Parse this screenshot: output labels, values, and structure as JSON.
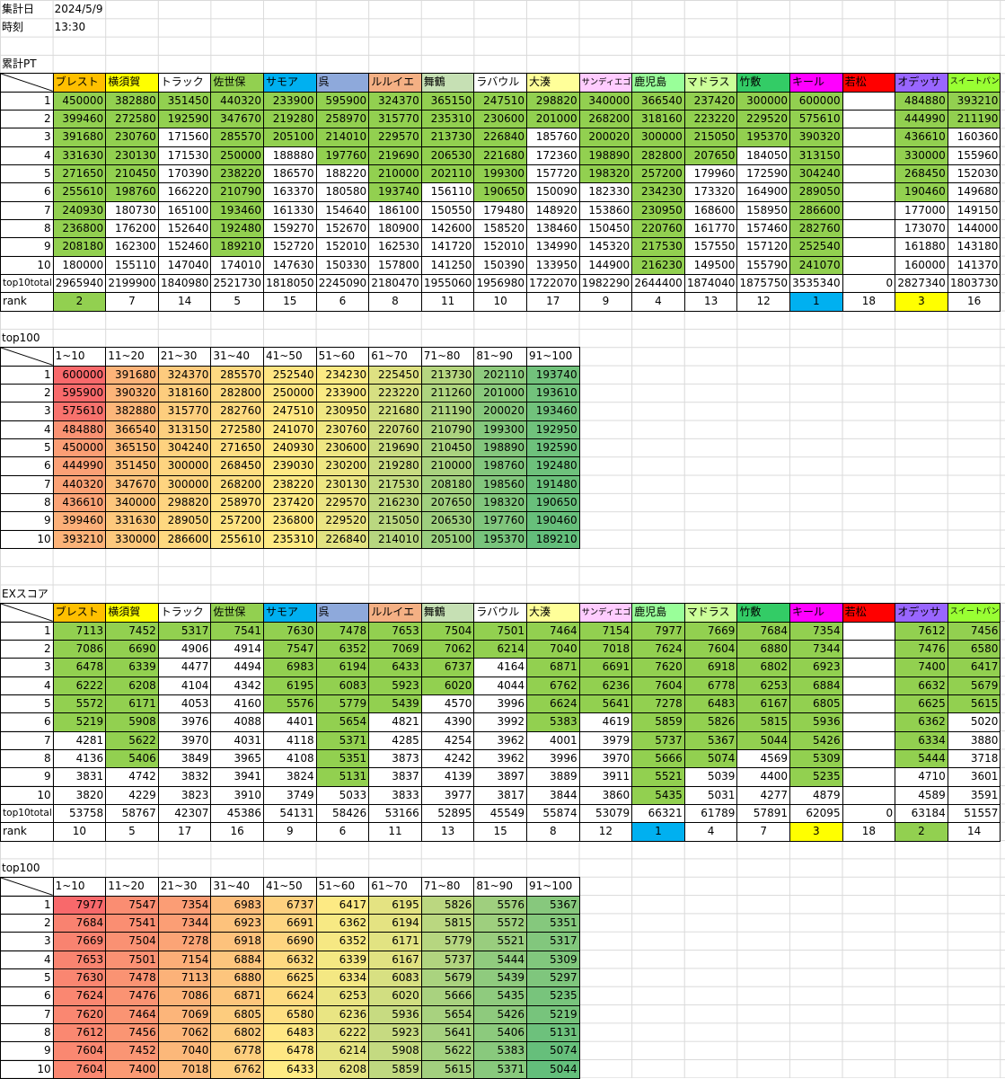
{
  "header": {
    "date_label": "集計日",
    "date": "2024/5/9",
    "time_label": "時刻",
    "time": "13:30"
  },
  "highlight_color": "#92d050",
  "rank_colors": [
    "#00b0f0",
    "#92d050",
    "#ffff00"
  ],
  "color_scale": [
    "#f8696b",
    "#ffeb84",
    "#63be7b"
  ],
  "teams": [
    {
      "name": "ブレスト",
      "color": "#ffc000"
    },
    {
      "name": "横須賀",
      "color": "#ffff00"
    },
    {
      "name": "トラック",
      "color": "#ffffff"
    },
    {
      "name": "佐世保",
      "color": "#92d050"
    },
    {
      "name": "サモア",
      "color": "#00b0f0"
    },
    {
      "name": "呉",
      "color": "#8ea9db"
    },
    {
      "name": "ルルイエ",
      "color": "#f4b084"
    },
    {
      "name": "舞鶴",
      "color": "#c6e0b4"
    },
    {
      "name": "ラバウル",
      "color": "#ffffff"
    },
    {
      "name": "大湊",
      "color": "#ffff99"
    },
    {
      "name": "サンディエゴ",
      "color": "#ffccff"
    },
    {
      "name": "鹿児島",
      "color": "#99ff99"
    },
    {
      "name": "マドラス",
      "color": "#ccff99"
    },
    {
      "name": "竹敷",
      "color": "#33cc66"
    },
    {
      "name": "キール",
      "color": "#ff00ff"
    },
    {
      "name": "若松",
      "color": "#ff0000"
    },
    {
      "name": "オデッサ",
      "color": "#9966ff"
    },
    {
      "name": "スイートパン",
      "color": "#99ff33"
    }
  ],
  "row_numbers": [
    1,
    2,
    3,
    4,
    5,
    6,
    7,
    8,
    9,
    10
  ],
  "total_label": "top10total",
  "rank_label": "rank",
  "top100_title": "top100",
  "top100_columns": [
    "1~10",
    "11~20",
    "21~30",
    "31~40",
    "41~50",
    "51~60",
    "61~70",
    "71~80",
    "81~90",
    "91~100"
  ],
  "sections": [
    {
      "title": "累計PT",
      "rows": [
        [
          450000,
          382880,
          351450,
          440320,
          233900,
          595900,
          324370,
          365150,
          247510,
          298820,
          340000,
          366540,
          237420,
          300000,
          600000,
          null,
          484880,
          393210
        ],
        [
          399460,
          272580,
          192590,
          347670,
          219280,
          258970,
          315770,
          235310,
          230600,
          201000,
          268200,
          318160,
          223220,
          229520,
          575610,
          null,
          444990,
          211190
        ],
        [
          391680,
          230760,
          171560,
          285570,
          205100,
          214010,
          229570,
          213730,
          226840,
          185760,
          200020,
          300000,
          215050,
          195370,
          390320,
          null,
          436610,
          160360
        ],
        [
          331630,
          230130,
          171530,
          250000,
          188880,
          197760,
          219690,
          206530,
          221680,
          172360,
          198890,
          282800,
          207650,
          184050,
          313150,
          null,
          330000,
          155960
        ],
        [
          271650,
          210450,
          170390,
          238220,
          186570,
          188220,
          210000,
          202110,
          199300,
          157720,
          198320,
          257200,
          179960,
          172590,
          304240,
          null,
          268450,
          152030
        ],
        [
          255610,
          198760,
          166220,
          210790,
          163370,
          180580,
          193740,
          156110,
          190650,
          150090,
          182330,
          234230,
          173320,
          164900,
          289050,
          null,
          190460,
          149680
        ],
        [
          240930,
          180730,
          165100,
          193460,
          161330,
          154640,
          186100,
          150550,
          179480,
          148920,
          153860,
          230950,
          168600,
          158950,
          286600,
          null,
          177000,
          149150
        ],
        [
          236800,
          176200,
          152640,
          192480,
          159270,
          152670,
          180900,
          142600,
          158520,
          138460,
          150450,
          220760,
          161770,
          157460,
          282760,
          null,
          173070,
          144000
        ],
        [
          208180,
          162300,
          152460,
          189210,
          152720,
          152010,
          162530,
          141720,
          152010,
          134990,
          145320,
          217530,
          157550,
          157120,
          252540,
          null,
          161880,
          143180
        ],
        [
          180000,
          155110,
          147040,
          174010,
          147630,
          150330,
          157800,
          141250,
          150390,
          133950,
          144900,
          216230,
          149500,
          155790,
          241070,
          null,
          160000,
          141370
        ]
      ],
      "total": [
        2965940,
        2199900,
        1840980,
        2521730,
        1818050,
        2245090,
        2180470,
        1955060,
        1956980,
        1722070,
        1982290,
        2644400,
        1874040,
        1875750,
        3535340,
        0,
        2827340,
        1803730
      ],
      "rank": [
        2,
        7,
        14,
        5,
        15,
        6,
        8,
        11,
        10,
        17,
        9,
        4,
        13,
        12,
        1,
        18,
        3,
        16
      ],
      "top100": [
        [
          600000,
          391680,
          324370,
          285570,
          252540,
          234230,
          225450,
          213730,
          202110,
          193740
        ],
        [
          595900,
          390320,
          318160,
          282800,
          250000,
          233900,
          223220,
          211260,
          201000,
          193610
        ],
        [
          575610,
          382880,
          315770,
          282760,
          247510,
          230950,
          221680,
          211190,
          200020,
          193460
        ],
        [
          484880,
          366540,
          313150,
          272580,
          241070,
          230760,
          220760,
          210790,
          199300,
          192950
        ],
        [
          450000,
          365150,
          304240,
          271650,
          240930,
          230600,
          219690,
          210450,
          198890,
          192590
        ],
        [
          444990,
          351450,
          300000,
          268450,
          239030,
          230200,
          219280,
          210000,
          198760,
          192480
        ],
        [
          440320,
          347670,
          300000,
          268200,
          238220,
          230130,
          217530,
          208180,
          198560,
          191480
        ],
        [
          436610,
          340000,
          298820,
          258970,
          237420,
          229570,
          216230,
          207650,
          198320,
          190650
        ],
        [
          399460,
          331630,
          289050,
          257200,
          236800,
          229520,
          215050,
          206530,
          197760,
          190460
        ],
        [
          393210,
          330000,
          286600,
          255610,
          235310,
          226840,
          214010,
          205100,
          195370,
          189210
        ]
      ]
    },
    {
      "title": "EXスコア",
      "rows": [
        [
          7113,
          7452,
          5317,
          7541,
          7630,
          7478,
          7653,
          7504,
          7501,
          7464,
          7154,
          7977,
          7669,
          7684,
          7354,
          null,
          7612,
          7456
        ],
        [
          7086,
          6690,
          4906,
          4914,
          7547,
          6352,
          7069,
          7062,
          6214,
          7040,
          7018,
          7624,
          7604,
          6880,
          7344,
          null,
          7476,
          6580
        ],
        [
          6478,
          6339,
          4477,
          4494,
          6983,
          6194,
          6433,
          6737,
          4164,
          6871,
          6691,
          7620,
          6918,
          6802,
          6923,
          null,
          7400,
          6417
        ],
        [
          6222,
          6208,
          4104,
          4342,
          6195,
          6083,
          5923,
          6020,
          4044,
          6762,
          6236,
          7604,
          6778,
          6253,
          6884,
          null,
          6632,
          5679
        ],
        [
          5572,
          6171,
          4053,
          4160,
          5576,
          5779,
          5439,
          4570,
          3996,
          6624,
          5641,
          7278,
          6483,
          6167,
          6805,
          null,
          6625,
          5615
        ],
        [
          5219,
          5908,
          3976,
          4088,
          4401,
          5654,
          4821,
          4390,
          3992,
          5383,
          4619,
          5859,
          5826,
          5815,
          5936,
          null,
          6362,
          5020
        ],
        [
          4281,
          5622,
          3970,
          4031,
          4118,
          5371,
          4285,
          4254,
          3962,
          4001,
          3979,
          5737,
          5367,
          5044,
          5426,
          null,
          6334,
          3880
        ],
        [
          4136,
          5406,
          3849,
          3965,
          4108,
          5351,
          3873,
          4242,
          3962,
          3996,
          3970,
          5666,
          5074,
          4569,
          5309,
          null,
          5444,
          3718
        ],
        [
          3831,
          4742,
          3832,
          3941,
          3824,
          5131,
          3837,
          4139,
          3897,
          3889,
          3911,
          5521,
          5039,
          4400,
          5235,
          null,
          4710,
          3601
        ],
        [
          3820,
          4229,
          3823,
          3910,
          3749,
          5033,
          3833,
          3977,
          3817,
          3844,
          3860,
          5435,
          5031,
          4277,
          4879,
          null,
          4589,
          3591
        ]
      ],
      "total": [
        53758,
        58767,
        42307,
        45386,
        54131,
        58426,
        53166,
        52895,
        45549,
        55874,
        53079,
        66321,
        61789,
        57891,
        62095,
        0,
        63184,
        51557
      ],
      "rank": [
        10,
        5,
        17,
        16,
        9,
        6,
        11,
        13,
        15,
        8,
        12,
        1,
        4,
        7,
        3,
        18,
        2,
        14
      ],
      "top100": [
        [
          7977,
          7547,
          7354,
          6983,
          6737,
          6417,
          6195,
          5826,
          5576,
          5367
        ],
        [
          7684,
          7541,
          7344,
          6923,
          6691,
          6362,
          6194,
          5815,
          5572,
          5351
        ],
        [
          7669,
          7504,
          7278,
          6918,
          6690,
          6352,
          6171,
          5779,
          5521,
          5317
        ],
        [
          7653,
          7501,
          7154,
          6884,
          6632,
          6339,
          6167,
          5737,
          5444,
          5309
        ],
        [
          7630,
          7478,
          7113,
          6880,
          6625,
          6334,
          6083,
          5679,
          5439,
          5297
        ],
        [
          7624,
          7476,
          7086,
          6871,
          6624,
          6253,
          6020,
          5666,
          5435,
          5235
        ],
        [
          7620,
          7464,
          7069,
          6805,
          6580,
          6236,
          5936,
          5654,
          5426,
          5219
        ],
        [
          7612,
          7456,
          7062,
          6802,
          6483,
          6222,
          5923,
          5641,
          5406,
          5131
        ],
        [
          7604,
          7452,
          7040,
          6778,
          6478,
          6214,
          5908,
          5622,
          5383,
          5074
        ],
        [
          7604,
          7400,
          7018,
          6762,
          6433,
          6208,
          5859,
          5615,
          5371,
          5044
        ]
      ]
    }
  ]
}
